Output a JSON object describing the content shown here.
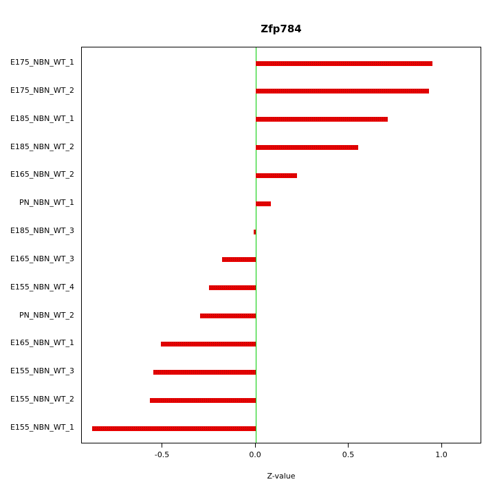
{
  "chart_data": {
    "type": "bar",
    "orientation": "horizontal",
    "title": "Zfp784",
    "xlabel": "Z-value",
    "ylabel": "",
    "categories": [
      "E175_NBN_WT_1",
      "E175_NBN_WT_2",
      "E185_NBN_WT_1",
      "E185_NBN_WT_2",
      "E165_NBN_WT_2",
      "PN_NBN_WT_1",
      "E185_NBN_WT_3",
      "E165_NBN_WT_3",
      "E155_NBN_WT_4",
      "PN_NBN_WT_2",
      "E165_NBN_WT_1",
      "E155_NBN_WT_3",
      "E155_NBN_WT_2",
      "E155_NBN_WT_1"
    ],
    "values": [
      0.95,
      0.93,
      0.71,
      0.55,
      0.22,
      0.08,
      -0.01,
      -0.18,
      -0.25,
      -0.3,
      -0.51,
      -0.55,
      -0.57,
      -0.88
    ],
    "x_ticks": [
      -0.5,
      0.0,
      0.5,
      1.0
    ],
    "x_tick_labels": [
      "-0.5",
      "0.0",
      "0.5",
      "1.0"
    ],
    "xlim": [
      -0.934,
      1.214
    ],
    "grid": false,
    "legend": "none",
    "bar_color": "#e80000",
    "bar_stipple_color": "#991111",
    "zero_line_color": "#00cc00",
    "axis_color": "#000000"
  }
}
